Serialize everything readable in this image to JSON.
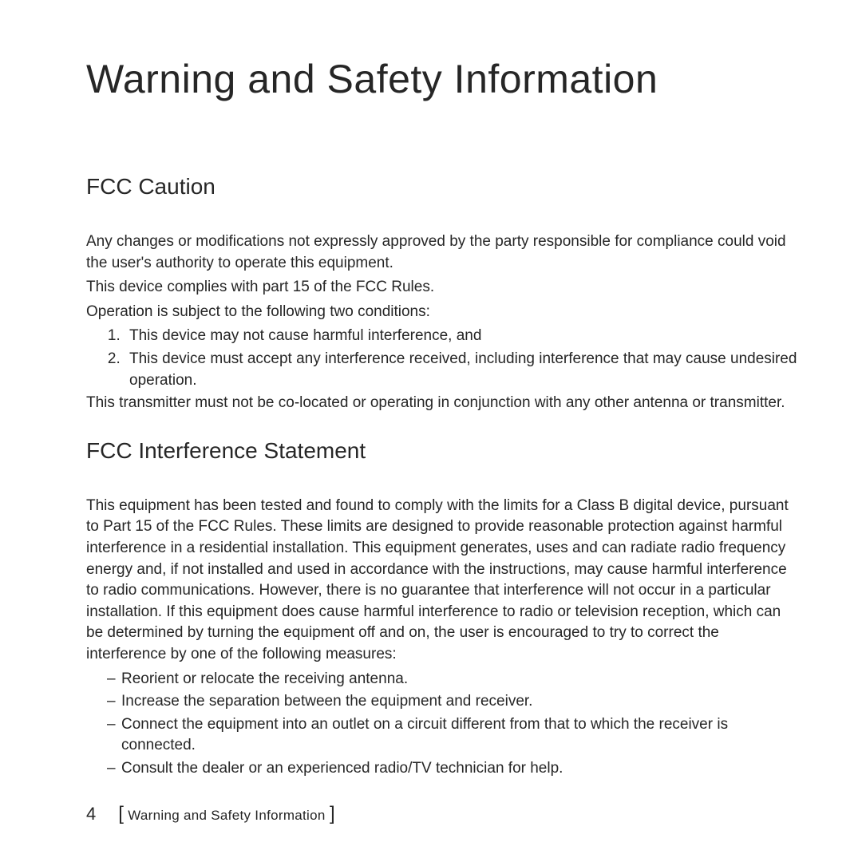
{
  "page_title": "Warning and Safety Information",
  "section1": {
    "heading": "FCC Caution",
    "p1": "Any changes or modifications not expressly approved by the party responsible for compliance could void the user's authority to operate this equipment.",
    "p2": "This device complies with part 15 of the FCC Rules.",
    "p3": "Operation is subject to the following two conditions:",
    "list": [
      "This device may not cause harmful interference, and",
      "This device must accept any interference received, including interference that may cause undesired operation."
    ],
    "p4": "This transmitter must not be co-located or operating in conjunction with any other antenna or transmitter."
  },
  "section2": {
    "heading": "FCC Interference Statement",
    "p1": "This equipment has been tested and found to comply with the limits for a Class B digital device, pursuant to Part 15 of the FCC Rules. These limits are designed to provide reasonable protection against harmful interference in a residential installation. This equipment generates, uses and can radiate radio frequency energy and, if not installed and used in accordance with the instructions, may cause harmful interference to radio communications. However, there is no guarantee that interference will not occur in a particular installation. If this equipment does cause harmful interference to radio or television reception, which can be determined by turning the equipment off and on, the user is encouraged to try to correct the interference by one of the following measures:",
    "list": [
      "Reorient or relocate the receiving antenna.",
      "Increase the separation between the equipment and receiver.",
      "Connect the equipment into an outlet on a circuit different from that to which the receiver is connected.",
      "Consult the dealer or an experienced radio/TV technician for help."
    ]
  },
  "footer": {
    "page_number": "4",
    "bracket_open": "[",
    "label": "Warning and Safety Information",
    "bracket_close": "]"
  }
}
